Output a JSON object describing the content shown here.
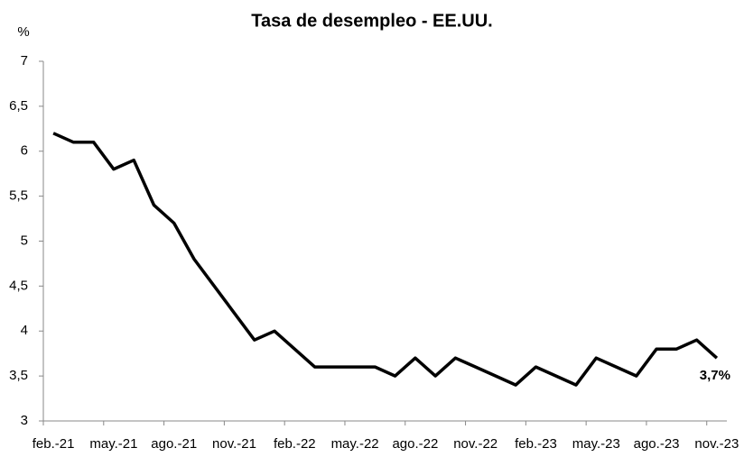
{
  "chart_data": {
    "type": "line",
    "title": "Tasa de desempleo - EE.UU.",
    "y_label": "%",
    "annotation": "3,7%",
    "categories": [
      "feb.-21",
      null,
      null,
      "may.-21",
      null,
      null,
      "ago.-21",
      null,
      null,
      "nov.-21",
      null,
      null,
      "feb.-22",
      null,
      null,
      "may.-22",
      null,
      null,
      "ago.-22",
      null,
      null,
      "nov.-22",
      null,
      null,
      "feb.-23",
      null,
      null,
      "may.-23",
      null,
      null,
      "ago.-23",
      null,
      null,
      "nov.-23"
    ],
    "series": [
      {
        "name": "Tasa de desempleo",
        "color": "#000000",
        "values": [
          6.2,
          6.1,
          6.1,
          5.8,
          5.9,
          5.4,
          5.2,
          4.8,
          4.5,
          4.2,
          3.9,
          4.0,
          3.8,
          3.6,
          3.6,
          3.6,
          3.6,
          3.5,
          3.7,
          3.5,
          3.7,
          3.6,
          3.5,
          3.4,
          3.6,
          3.5,
          3.4,
          3.7,
          3.6,
          3.5,
          3.8,
          3.8,
          3.9,
          3.7
        ]
      }
    ],
    "ylim": [
      3,
      7
    ],
    "yticks": [
      3,
      {
        "value": 3.5,
        "label": "3,5"
      },
      4,
      {
        "value": 4.5,
        "label": "4,5"
      },
      5,
      {
        "value": 5.5,
        "label": "5,5"
      },
      6,
      {
        "value": 6.5,
        "label": "6,5"
      },
      7
    ],
    "grid": false
  }
}
